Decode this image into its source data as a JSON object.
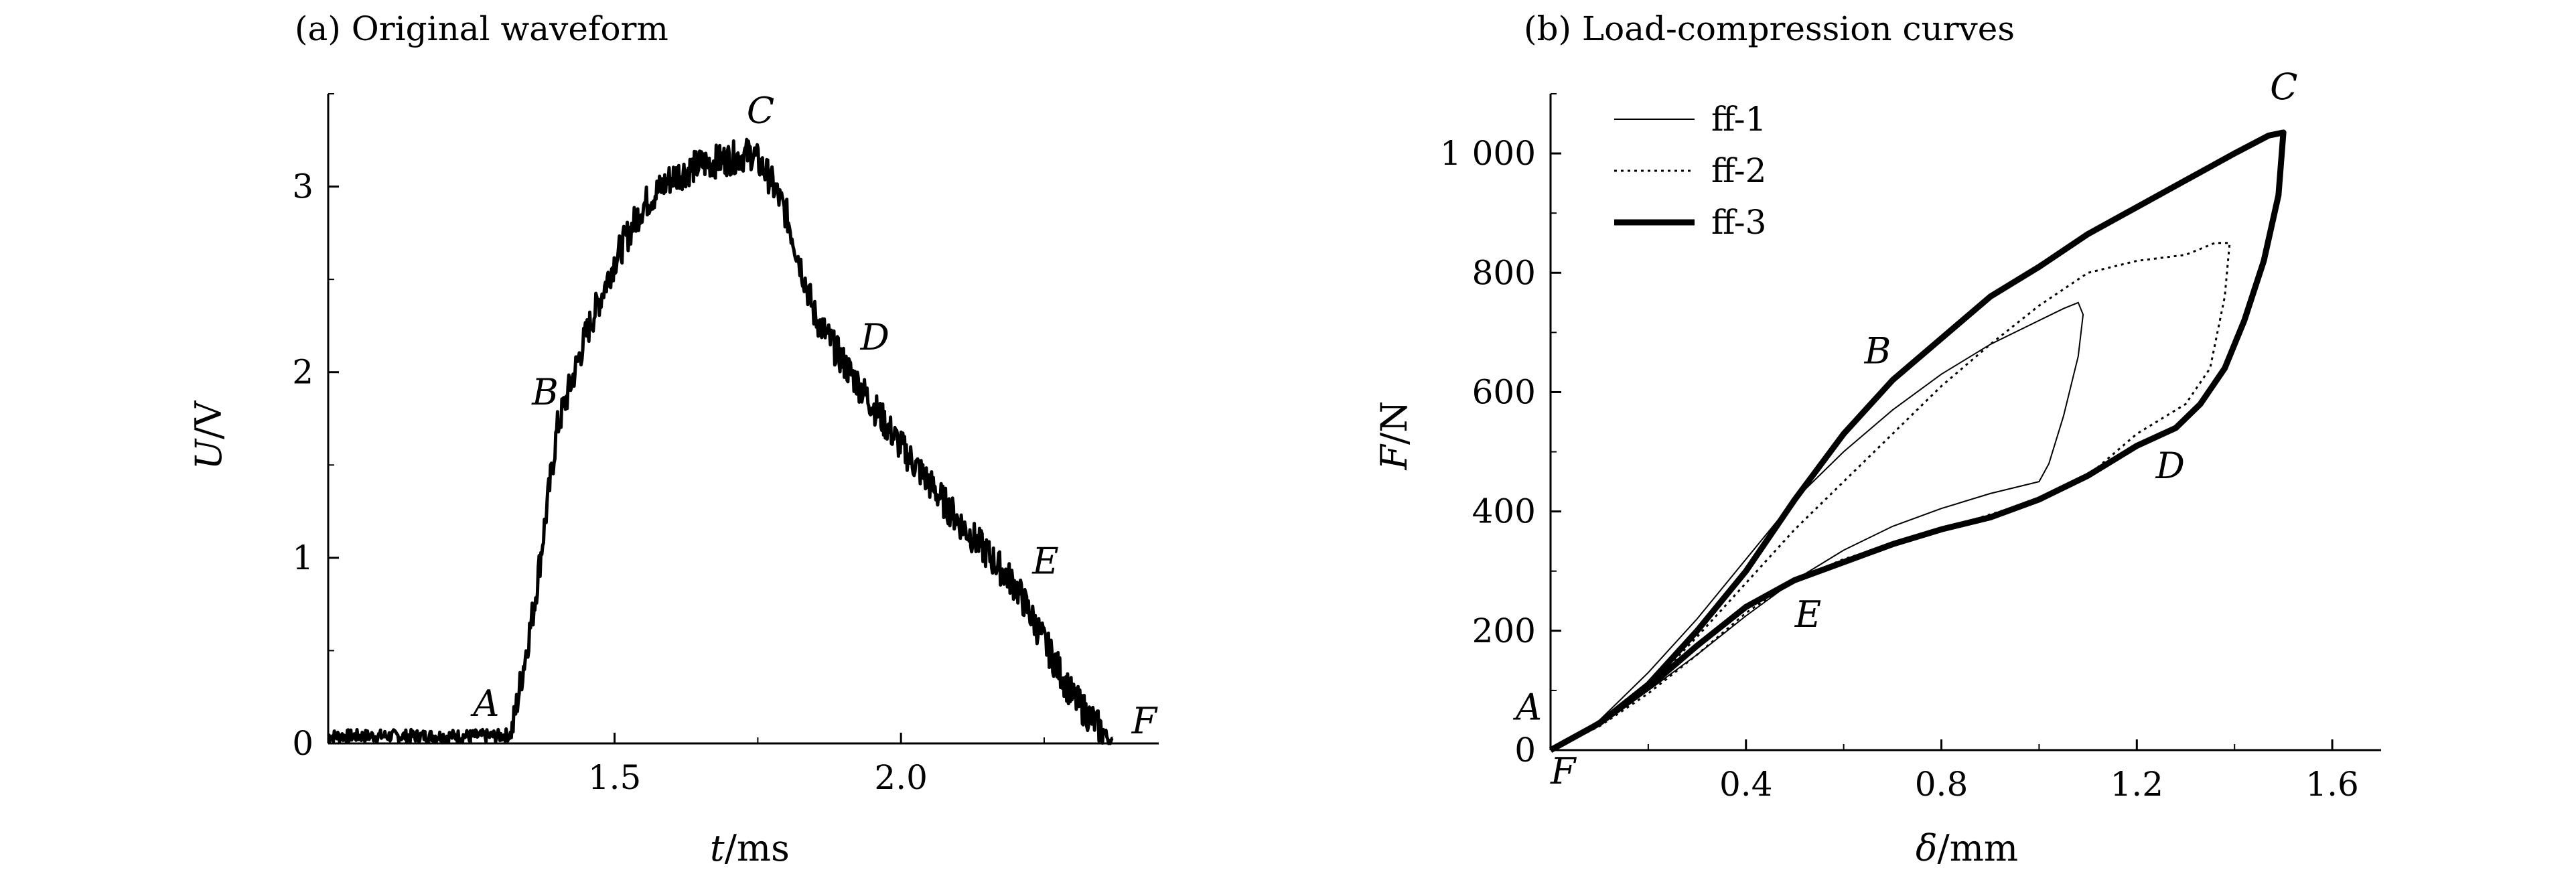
{
  "chart_data": [
    {
      "type": "line",
      "title": "(a) Original waveform",
      "xlabel": {
        "symbol": "t",
        "unit": "/ms"
      },
      "ylabel": {
        "symbol": "U",
        "unit": "/V"
      },
      "xlim": [
        1.0,
        2.45
      ],
      "ylim": [
        0,
        3.5
      ],
      "x_ticks": [
        {
          "v": 1.5,
          "label": "1.5"
        },
        {
          "v": 2.0,
          "label": "2.0"
        }
      ],
      "y_ticks": [
        {
          "v": 0,
          "label": "0"
        },
        {
          "v": 1,
          "label": "1"
        },
        {
          "v": 2,
          "label": "2"
        },
        {
          "v": 3,
          "label": "3"
        }
      ],
      "grid": false,
      "series": [
        {
          "x": [
            1.0,
            1.1,
            1.2,
            1.3,
            1.32,
            1.36,
            1.4,
            1.45,
            1.5,
            1.55,
            1.6,
            1.65,
            1.7,
            1.74,
            1.77,
            1.8,
            1.85,
            1.9,
            2.0,
            2.1,
            2.2,
            2.3,
            2.37
          ],
          "y": [
            0.04,
            0.04,
            0.04,
            0.04,
            0.05,
            0.75,
            1.7,
            2.2,
            2.6,
            2.9,
            3.05,
            3.12,
            3.15,
            3.18,
            3.05,
            2.85,
            2.3,
            2.05,
            1.6,
            1.2,
            0.85,
            0.25,
            0.0
          ]
        }
      ],
      "annotations": [
        {
          "text": "A",
          "x": 1.3,
          "y": 0.04
        },
        {
          "text": "B",
          "x": 1.4,
          "y": 1.7
        },
        {
          "text": "C",
          "x": 1.74,
          "y": 3.18
        },
        {
          "text": "D",
          "x": 1.9,
          "y": 2.05
        },
        {
          "text": "E",
          "x": 2.2,
          "y": 0.85
        },
        {
          "text": "F",
          "x": 2.37,
          "y": 0.0
        }
      ]
    },
    {
      "type": "line",
      "title": "(b) Load-compression curves",
      "xlabel": {
        "symbol": "δ",
        "unit": "/mm"
      },
      "ylabel": {
        "symbol": "F",
        "unit": "/N"
      },
      "xlim": [
        0,
        1.7
      ],
      "ylim": [
        0,
        1100
      ],
      "x_ticks": [
        {
          "v": 0.4,
          "label": "0.4"
        },
        {
          "v": 0.8,
          "label": "0.8"
        },
        {
          "v": 1.2,
          "label": "1.2"
        },
        {
          "v": 1.6,
          "label": "1.6"
        }
      ],
      "y_ticks": [
        {
          "v": 0,
          "label": "0"
        },
        {
          "v": 200,
          "label": "200"
        },
        {
          "v": 400,
          "label": "400"
        },
        {
          "v": 600,
          "label": "600"
        },
        {
          "v": 800,
          "label": "800"
        },
        {
          "v": 1000,
          "label": "1 000"
        }
      ],
      "grid": false,
      "legend": {
        "position": "top-left"
      },
      "series": [
        {
          "name": "ff-1",
          "style": "thin",
          "x": [
            0.0,
            0.1,
            0.2,
            0.3,
            0.4,
            0.5,
            0.6,
            0.7,
            0.8,
            0.9,
            1.0,
            1.05,
            1.08,
            1.09,
            1.08,
            1.05,
            1.02,
            1.0,
            0.9,
            0.8,
            0.7,
            0.6,
            0.5,
            0.4,
            0.3,
            0.2,
            0.1,
            0.0
          ],
          "y": [
            0,
            50,
            130,
            220,
            320,
            420,
            500,
            570,
            630,
            680,
            720,
            740,
            750,
            730,
            660,
            560,
            480,
            450,
            430,
            405,
            375,
            335,
            285,
            225,
            160,
            100,
            45,
            0
          ]
        },
        {
          "name": "ff-2",
          "style": "dotted",
          "x": [
            0.0,
            0.1,
            0.2,
            0.3,
            0.4,
            0.5,
            0.6,
            0.7,
            0.8,
            0.9,
            1.0,
            1.1,
            1.2,
            1.3,
            1.36,
            1.39,
            1.38,
            1.35,
            1.3,
            1.25,
            1.2,
            1.1,
            1.0,
            0.9,
            0.8,
            0.7,
            0.6,
            0.5,
            0.4,
            0.3,
            0.2,
            0.1,
            0.0
          ],
          "y": [
            0,
            40,
            105,
            190,
            280,
            370,
            450,
            530,
            610,
            680,
            745,
            800,
            820,
            830,
            850,
            850,
            760,
            640,
            580,
            555,
            530,
            460,
            420,
            395,
            370,
            345,
            320,
            285,
            230,
            160,
            95,
            40,
            0
          ]
        },
        {
          "name": "ff-3",
          "style": "thick",
          "x": [
            0.0,
            0.1,
            0.2,
            0.3,
            0.4,
            0.5,
            0.6,
            0.7,
            0.8,
            0.9,
            1.0,
            1.1,
            1.2,
            1.3,
            1.4,
            1.47,
            1.5,
            1.49,
            1.46,
            1.42,
            1.38,
            1.33,
            1.28,
            1.2,
            1.1,
            1.0,
            0.9,
            0.8,
            0.7,
            0.6,
            0.5,
            0.4,
            0.3,
            0.2,
            0.1,
            0.0
          ],
          "y": [
            0,
            45,
            110,
            200,
            300,
            420,
            530,
            620,
            690,
            760,
            810,
            865,
            910,
            955,
            1000,
            1030,
            1035,
            930,
            820,
            720,
            640,
            580,
            540,
            510,
            460,
            420,
            390,
            370,
            345,
            315,
            285,
            240,
            175,
            105,
            45,
            0
          ]
        }
      ],
      "annotations": [
        {
          "text": "A",
          "x": 0.0,
          "y": 40
        },
        {
          "text": "B",
          "x": 0.7,
          "y": 620
        },
        {
          "text": "C",
          "x": 1.5,
          "y": 1035
        },
        {
          "text": "D",
          "x": 1.28,
          "y": 540
        },
        {
          "text": "E",
          "x": 0.5,
          "y": 285
        },
        {
          "text": "F",
          "x": 0.0,
          "y": 0
        }
      ]
    }
  ]
}
